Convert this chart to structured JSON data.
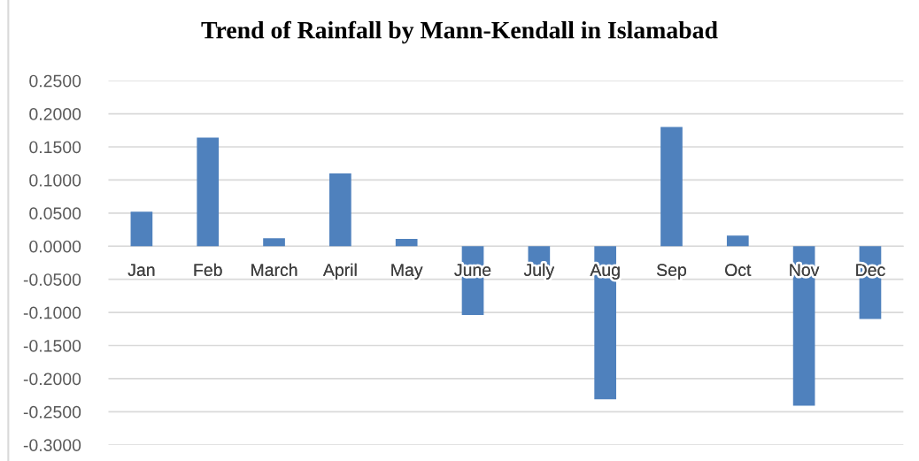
{
  "chart_data": {
    "type": "bar",
    "title": "Trend of Rainfall by Mann-Kendall in Islamabad",
    "categories": [
      "Jan",
      "Feb",
      "March",
      "April",
      "May",
      "June",
      "July",
      "Aug",
      "Sep",
      "Oct",
      "Nov",
      "Dec"
    ],
    "values": [
      0.052,
      0.164,
      0.012,
      0.11,
      0.011,
      -0.104,
      -0.03,
      -0.231,
      0.18,
      0.016,
      -0.241,
      -0.11
    ],
    "color": "#4f81bd",
    "ylim": [
      -0.3,
      0.25
    ],
    "yticks": [
      {
        "value": -0.3,
        "label": "-0.3000"
      },
      {
        "value": -0.25,
        "label": "-0.2500"
      },
      {
        "value": -0.2,
        "label": "-0.2000"
      },
      {
        "value": -0.15,
        "label": "-0.1500"
      },
      {
        "value": -0.1,
        "label": "-0.1000"
      },
      {
        "value": -0.05,
        "label": "-0.0500"
      },
      {
        "value": 0,
        "label": "0.0000"
      },
      {
        "value": 0.05,
        "label": "0.0500"
      },
      {
        "value": 0.1,
        "label": "0.1000"
      },
      {
        "value": 0.15,
        "label": "0.1500"
      },
      {
        "value": 0.2,
        "label": "0.2000"
      },
      {
        "value": 0.25,
        "label": "0.2500"
      }
    ],
    "grid": "y"
  }
}
